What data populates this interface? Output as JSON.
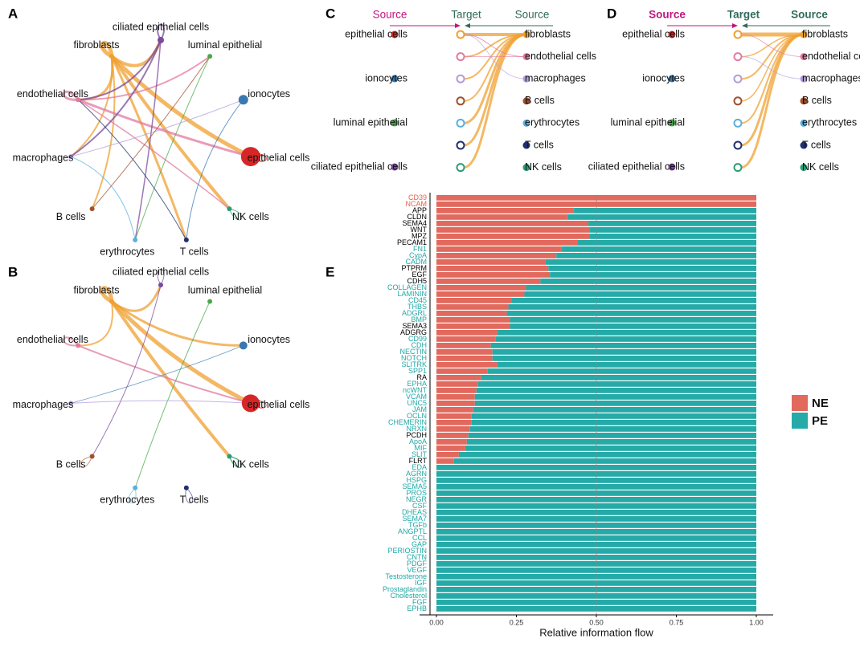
{
  "chart_data": [
    {
      "type": "network",
      "label": "A",
      "nodes": {
        "names": [
          "ciliated epithelial cells",
          "luminal epithelial",
          "ionocytes",
          "epithelial cells",
          "NK cells",
          "T cells",
          "erythrocytes",
          "B cells",
          "macrophages",
          "endothelial cells",
          "fibroblasts"
        ],
        "colors": [
          "#7b4a9c",
          "#4aa84a",
          "#3a78b0",
          "#d62728",
          "#2a9d74",
          "#1f2f6e",
          "#5ab0e0",
          "#a0522d",
          "#b39ddb",
          "#e07ba0",
          "#f0a030"
        ],
        "sizes": [
          4,
          3,
          6,
          12,
          3,
          3,
          3,
          3,
          3,
          3,
          3
        ]
      },
      "edges": [
        {
          "from": 10,
          "to": 3,
          "weight": 5
        },
        {
          "from": 10,
          "to": 10,
          "weight": 5
        },
        {
          "from": 10,
          "to": 0,
          "weight": 4
        },
        {
          "from": 10,
          "to": 4,
          "weight": 4
        },
        {
          "from": 10,
          "to": 9,
          "weight": 3
        },
        {
          "from": 10,
          "to": 5,
          "weight": 3
        },
        {
          "from": 10,
          "to": 8,
          "weight": 2
        },
        {
          "from": 10,
          "to": 7,
          "weight": 2
        },
        {
          "from": 9,
          "to": 3,
          "weight": 3
        },
        {
          "from": 9,
          "to": 9,
          "weight": 3
        },
        {
          "from": 9,
          "to": 1,
          "weight": 2
        },
        {
          "from": 9,
          "to": 4,
          "weight": 1.5
        },
        {
          "from": 0,
          "to": 0,
          "weight": 2
        },
        {
          "from": 0,
          "to": 8,
          "weight": 2
        },
        {
          "from": 0,
          "to": 6,
          "weight": 1.5
        },
        {
          "from": 0,
          "to": 9,
          "weight": 2
        },
        {
          "from": 2,
          "to": 5,
          "weight": 1
        },
        {
          "from": 1,
          "to": 6,
          "weight": 1
        },
        {
          "from": 3,
          "to": 3,
          "weight": 1.5
        },
        {
          "from": 4,
          "to": 4,
          "weight": 1
        },
        {
          "from": 6,
          "to": 8,
          "weight": 1
        },
        {
          "from": 5,
          "to": 9,
          "weight": 1
        },
        {
          "from": 8,
          "to": 2,
          "weight": 1
        },
        {
          "from": 7,
          "to": 1,
          "weight": 1
        }
      ]
    },
    {
      "type": "network",
      "label": "B",
      "nodes": {
        "names": [
          "ciliated epithelial cells",
          "luminal epithelial",
          "ionocytes",
          "epithelial cells",
          "NK cells",
          "T cells",
          "erythrocytes",
          "B cells",
          "macrophages",
          "endothelial cells",
          "fibroblasts"
        ],
        "colors": [
          "#7b4a9c",
          "#4aa84a",
          "#3a78b0",
          "#d62728",
          "#2a9d74",
          "#1f2f6e",
          "#5ab0e0",
          "#a0522d",
          "#b39ddb",
          "#e07ba0",
          "#f0a030"
        ],
        "sizes": [
          3,
          3,
          5,
          11,
          3,
          3,
          3,
          3,
          3,
          3,
          3
        ]
      },
      "edges": [
        {
          "from": 10,
          "to": 3,
          "weight": 5
        },
        {
          "from": 10,
          "to": 10,
          "weight": 5
        },
        {
          "from": 10,
          "to": 4,
          "weight": 4
        },
        {
          "from": 10,
          "to": 0,
          "weight": 3
        },
        {
          "from": 10,
          "to": 2,
          "weight": 3
        },
        {
          "from": 9,
          "to": 3,
          "weight": 2
        },
        {
          "from": 9,
          "to": 9,
          "weight": 2
        },
        {
          "from": 10,
          "to": 9,
          "weight": 2
        },
        {
          "from": 0,
          "to": 0,
          "weight": 1
        },
        {
          "from": 4,
          "to": 4,
          "weight": 1.5
        },
        {
          "from": 3,
          "to": 3,
          "weight": 1
        },
        {
          "from": 0,
          "to": 7,
          "weight": 1
        },
        {
          "from": 1,
          "to": 6,
          "weight": 1
        },
        {
          "from": 8,
          "to": 3,
          "weight": 1
        },
        {
          "from": 6,
          "to": 6,
          "weight": 0.8
        },
        {
          "from": 5,
          "to": 5,
          "weight": 0.8
        },
        {
          "from": 7,
          "to": 7,
          "weight": 0.8
        },
        {
          "from": 2,
          "to": 8,
          "weight": 0.8
        }
      ]
    },
    {
      "type": "hierarchy",
      "label": "C",
      "header": [
        "Source",
        "Target",
        "Source"
      ],
      "header_colors": [
        "#c0157f",
        "#2f6b5b",
        "#2f6b5b"
      ],
      "header_weight": "normal",
      "left": {
        "names": [
          "epithelial cells",
          "ionocytes",
          "luminal epithelial",
          "ciliated epithelial cells"
        ],
        "colors": [
          "#d62728",
          "#3a78b0",
          "#4aa84a",
          "#7b4a9c"
        ]
      },
      "targets": {
        "colors": [
          "#f0a030",
          "#e07ba0",
          "#b39ddb",
          "#a0522d",
          "#5ab0e0",
          "#1f2f6e",
          "#2a9d74"
        ]
      },
      "right": {
        "names": [
          "fibroblasts",
          "endothelial cells",
          "macrophages",
          "B cells",
          "erythrocytes",
          "T cells",
          "NK cells"
        ],
        "colors": [
          "#f0a030",
          "#e07ba0",
          "#b39ddb",
          "#a0522d",
          "#5ab0e0",
          "#1f2f6e",
          "#2a9d74"
        ]
      },
      "edges": [
        {
          "from": 0,
          "to": 0,
          "weight": 4
        },
        {
          "from": 0,
          "to": 1,
          "weight": 2
        },
        {
          "from": 0,
          "to": 2,
          "weight": 2
        },
        {
          "from": 0,
          "to": 3,
          "weight": 2
        },
        {
          "from": 0,
          "to": 4,
          "weight": 3
        },
        {
          "from": 0,
          "to": 5,
          "weight": 3
        },
        {
          "from": 0,
          "to": 6,
          "weight": 3
        },
        {
          "from": 1,
          "to": 0,
          "weight": 1
        },
        {
          "from": 1,
          "to": 1,
          "weight": 0.8
        },
        {
          "from": 2,
          "to": 0,
          "weight": 0.8
        }
      ]
    },
    {
      "type": "hierarchy",
      "label": "D",
      "header": [
        "Source",
        "Target",
        "Source"
      ],
      "header_colors": [
        "#c0157f",
        "#2f6b5b",
        "#2f6b5b"
      ],
      "header_weight": "bold",
      "left": {
        "names": [
          "epithelial cells",
          "ionocytes",
          "luminal epithelial",
          "ciliated epithelial cells"
        ],
        "colors": [
          "#d62728",
          "#3a78b0",
          "#4aa84a",
          "#7b4a9c"
        ]
      },
      "targets": {
        "colors": [
          "#f0a030",
          "#e07ba0",
          "#b39ddb",
          "#a0522d",
          "#5ab0e0",
          "#1f2f6e",
          "#2a9d74"
        ]
      },
      "right": {
        "names": [
          "fibroblasts",
          "endothelial cells",
          "macrophages",
          "B cells",
          "erythrocytes",
          "T cells",
          "NK cells"
        ],
        "colors": [
          "#f0a030",
          "#e07ba0",
          "#b39ddb",
          "#a0522d",
          "#5ab0e0",
          "#1f2f6e",
          "#2a9d74"
        ]
      },
      "edges": [
        {
          "from": 0,
          "to": 0,
          "weight": 5
        },
        {
          "from": 0,
          "to": 1,
          "weight": 1.5
        },
        {
          "from": 0,
          "to": 2,
          "weight": 2
        },
        {
          "from": 0,
          "to": 3,
          "weight": 1.5
        },
        {
          "from": 0,
          "to": 4,
          "weight": 2
        },
        {
          "from": 0,
          "to": 5,
          "weight": 3
        },
        {
          "from": 0,
          "to": 6,
          "weight": 3
        },
        {
          "from": 1,
          "to": 0,
          "weight": 0.8
        },
        {
          "from": 2,
          "to": 1,
          "weight": 0.8
        }
      ]
    },
    {
      "type": "bar",
      "label": "E",
      "orientation": "horizontal",
      "stacked": true,
      "categories": [
        "CD39",
        "NCAM",
        "APP",
        "CLDN",
        "SEMA4",
        "WNT",
        "MPZ",
        "PECAM1",
        "FN1",
        "CypA",
        "CADM",
        "PTPRM",
        "EGF",
        "CDH5",
        "COLLAGEN",
        "LAMININ",
        "CD45",
        "THBS",
        "ADGRL",
        "BMP",
        "SEMA3",
        "ADGRG",
        "CD99",
        "CDH",
        "NECTIN",
        "NOTCH",
        "SLITRK",
        "SPP1",
        "RA",
        "EPHA",
        "ncWNT",
        "VCAM",
        "UNC5",
        "JAM",
        "OCLN",
        "CHEMERIN",
        "NRXN",
        "PCDH",
        "ApoA",
        "MIF",
        "SLIT",
        "FLRT",
        "EDA",
        "AGRN",
        "HSPG",
        "SEMA5",
        "PROS",
        "NEGR",
        "CSF",
        "DHEAS",
        "SEMA7",
        "TGFb",
        "ANGPTL",
        "CCL",
        "GAP",
        "PERIOSTIN",
        "CNTN",
        "PDGF",
        "VEGF",
        "Testosterone",
        "IGF",
        "Prostaglandin",
        "Cholesterol",
        "FGF",
        "EPHB"
      ],
      "category_colors": [
        "#e8604c",
        "#e8604c",
        "#000000",
        "#000000",
        "#000000",
        "#000000",
        "#000000",
        "#000000",
        "#20a8a6",
        "#20a8a6",
        "#20a8a6",
        "#000000",
        "#000000",
        "#000000",
        "#20a8a6",
        "#20a8a6",
        "#20a8a6",
        "#20a8a6",
        "#20a8a6",
        "#20a8a6",
        "#000000",
        "#000000",
        "#20a8a6",
        "#20a8a6",
        "#20a8a6",
        "#20a8a6",
        "#20a8a6",
        "#20a8a6",
        "#000000",
        "#20a8a6",
        "#20a8a6",
        "#20a8a6",
        "#20a8a6",
        "#20a8a6",
        "#20a8a6",
        "#20a8a6",
        "#20a8a6",
        "#000000",
        "#20a8a6",
        "#20a8a6",
        "#20a8a6",
        "#000000",
        "#20a8a6",
        "#20a8a6",
        "#20a8a6",
        "#20a8a6",
        "#20a8a6",
        "#20a8a6",
        "#20a8a6",
        "#20a8a6",
        "#20a8a6",
        "#20a8a6",
        "#20a8a6",
        "#20a8a6",
        "#20a8a6",
        "#20a8a6",
        "#20a8a6",
        "#20a8a6",
        "#20a8a6",
        "#20a8a6",
        "#20a8a6",
        "#20a8a6",
        "#20a8a6",
        "#20a8a6",
        "#20a8a6"
      ],
      "series": [
        {
          "name": "NE",
          "color": "#e2695d",
          "values": [
            1,
            1,
            0.43,
            0.41,
            0.475,
            0.48,
            0.48,
            0.44,
            0.39,
            0.375,
            0.34,
            0.35,
            0.355,
            0.325,
            0.28,
            0.275,
            0.235,
            0.225,
            0.22,
            0.23,
            0.23,
            0.19,
            0.185,
            0.17,
            0.175,
            0.175,
            0.19,
            0.16,
            0.14,
            0.13,
            0.125,
            0.12,
            0.12,
            0.115,
            0.11,
            0.11,
            0.105,
            0.1,
            0.095,
            0.09,
            0.07,
            0.055,
            0,
            0,
            0,
            0,
            0,
            0,
            0,
            0,
            0,
            0,
            0,
            0,
            0,
            0,
            0,
            0,
            0,
            0,
            0,
            0,
            0,
            0,
            0
          ]
        },
        {
          "name": "PE",
          "color": "#25aaa8",
          "values": [
            0,
            0,
            0.57,
            0.59,
            0.525,
            0.52,
            0.52,
            0.56,
            0.61,
            0.625,
            0.66,
            0.65,
            0.645,
            0.675,
            0.72,
            0.725,
            0.765,
            0.775,
            0.78,
            0.77,
            0.77,
            0.81,
            0.815,
            0.83,
            0.825,
            0.825,
            0.81,
            0.84,
            0.86,
            0.87,
            0.875,
            0.88,
            0.88,
            0.885,
            0.89,
            0.89,
            0.895,
            0.9,
            0.905,
            0.91,
            0.93,
            0.945,
            1,
            1,
            1,
            1,
            1,
            1,
            1,
            1,
            1,
            1,
            1,
            1,
            1,
            1,
            1,
            1,
            1,
            1,
            1,
            1,
            1,
            1,
            1
          ]
        }
      ],
      "xlim": [
        0,
        1
      ],
      "xticks": [
        {
          "value": 0,
          "label": "0.00"
        },
        {
          "value": 0.25,
          "label": "0.25"
        },
        {
          "value": 0.5,
          "label": "0.50"
        },
        {
          "value": 0.75,
          "label": "0.75"
        },
        {
          "value": 1,
          "label": "1.00"
        }
      ],
      "xlabel": "Relative information flow",
      "legend": "right"
    }
  ]
}
